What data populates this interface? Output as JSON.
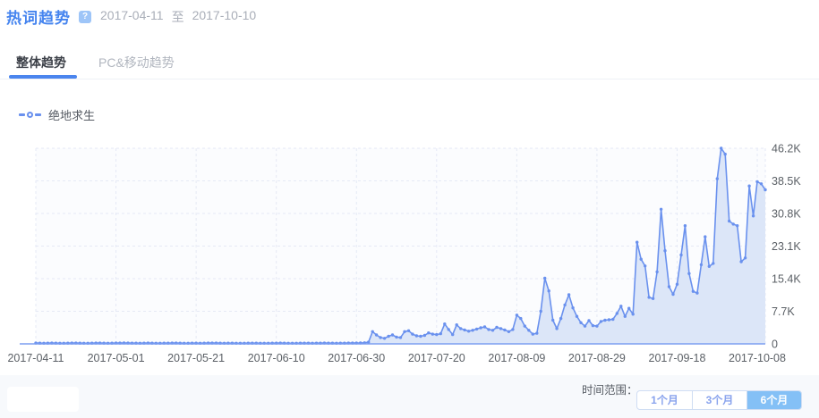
{
  "header": {
    "title": "热词趋势",
    "help_icon": "?",
    "date_start": "2017-04-11",
    "date_separator": "至",
    "date_end": "2017-10-10"
  },
  "tabs": [
    {
      "label": "整体趋势",
      "active": true
    },
    {
      "label": "PC&移动趋势",
      "active": false
    }
  ],
  "legend": {
    "series_label": "绝地求生",
    "marker": "line-circle-line",
    "color": "#6a91ee"
  },
  "colors": {
    "accent_blue": "#4584ef",
    "line": "#6a91ee",
    "fill": "#dce6f8",
    "axis": "#7b9df1",
    "grid": "#e5e9f5",
    "axis_text": "#5b6066",
    "muted_text": "#a9aeb8",
    "footer_bg": "#f7f9fc",
    "active_button_bg": "#84c0f6",
    "button_text": "#89a3ed"
  },
  "chart_data": {
    "type": "area",
    "series_name": "绝地求生",
    "x_start_date": "2017-04-11",
    "x_end_date": "2017-10-10",
    "x_tick_labels": [
      "2017-04-11",
      "2017-05-01",
      "2017-05-21",
      "2017-06-10",
      "2017-06-30",
      "2017-07-20",
      "2017-08-09",
      "2017-08-29",
      "2017-09-18",
      "2017-10-08"
    ],
    "x_tick_indices": [
      0,
      20,
      40,
      60,
      80,
      100,
      120,
      140,
      160,
      180
    ],
    "y_tick_labels": [
      "46.2K",
      "38.5K",
      "30.8K",
      "23.1K",
      "15.4K",
      "7.7K",
      "0"
    ],
    "y_tick_values": [
      46200,
      38500,
      30800,
      23100,
      15400,
      7700,
      0
    ],
    "ylim": [
      0,
      46200
    ],
    "grid": "dashed",
    "legend_position": "top-left",
    "values": [
      180,
      160,
      150,
      170,
      190,
      160,
      140,
      150,
      160,
      180,
      200,
      170,
      150,
      140,
      160,
      180,
      190,
      170,
      150,
      160,
      180,
      200,
      220,
      190,
      170,
      160,
      150,
      170,
      180,
      160,
      150,
      140,
      160,
      170,
      190,
      180,
      160,
      150,
      140,
      160,
      170,
      150,
      160,
      180,
      200,
      180,
      160,
      150,
      170,
      160,
      150,
      140,
      150,
      160,
      170,
      160,
      150,
      140,
      150,
      160,
      170,
      180,
      160,
      150,
      140,
      150,
      160,
      170,
      160,
      150,
      160,
      170,
      180,
      170,
      160,
      150,
      160,
      170,
      180,
      190,
      200,
      220,
      260,
      400,
      2900,
      2100,
      1500,
      1300,
      1800,
      2100,
      1600,
      1500,
      2900,
      3100,
      2300,
      1900,
      1800,
      2000,
      2600,
      2300,
      2200,
      2400,
      4700,
      3400,
      2200,
      4500,
      3600,
      3300,
      3000,
      3200,
      3500,
      3800,
      4000,
      3400,
      3200,
      3900,
      3600,
      3300,
      2900,
      3400,
      6800,
      6000,
      4200,
      3200,
      2300,
      2500,
      7700,
      15500,
      12500,
      5600,
      3600,
      6000,
      9200,
      11600,
      8500,
      6500,
      5000,
      4200,
      5500,
      4300,
      4200,
      5300,
      5600,
      5700,
      5800,
      7200,
      8900,
      6500,
      8400,
      7000,
      24000,
      20000,
      18400,
      11000,
      10700,
      17000,
      31800,
      22000,
      13500,
      11700,
      14100,
      21000,
      27900,
      16600,
      12400,
      12000,
      18700,
      25300,
      18300,
      19000,
      39000,
      46200,
      44800,
      29000,
      28300,
      27900,
      19400,
      20300,
      37300,
      30200,
      38300,
      37800,
      36400
    ]
  },
  "footer": {
    "time_range_label": "时间范围：",
    "buttons": [
      {
        "label": "1个月",
        "active": false
      },
      {
        "label": "3个月",
        "active": false
      },
      {
        "label": "6个月",
        "active": true
      }
    ]
  }
}
